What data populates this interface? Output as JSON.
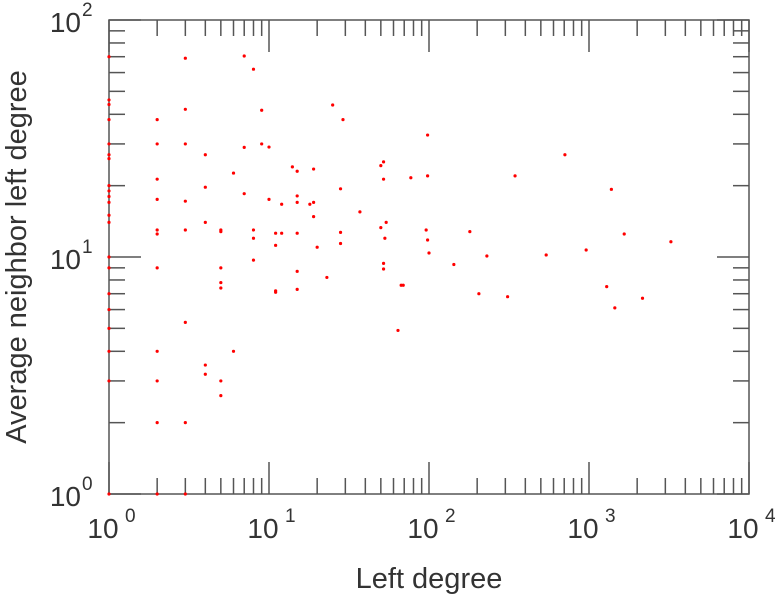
{
  "chart_data": {
    "type": "scatter",
    "title": "",
    "xlabel": "Left degree",
    "ylabel": "Average neighbor left degree",
    "xscale": "log",
    "yscale": "log",
    "xlim": [
      1,
      10000
    ],
    "ylim": [
      1,
      100
    ],
    "grid": false,
    "marker_color": "#ff0000",
    "x_ticks": [
      {
        "base": "10",
        "exp": "0",
        "value": 1
      },
      {
        "base": "10",
        "exp": "1",
        "value": 10
      },
      {
        "base": "10",
        "exp": "2",
        "value": 100
      },
      {
        "base": "10",
        "exp": "3",
        "value": 1000
      },
      {
        "base": "10",
        "exp": "4",
        "value": 10000
      }
    ],
    "y_ticks": [
      {
        "base": "10",
        "exp": "0",
        "value": 1
      },
      {
        "base": "10",
        "exp": "1",
        "value": 10
      },
      {
        "base": "10",
        "exp": "2",
        "value": 100
      }
    ],
    "points": [
      [
        1,
        70
      ],
      [
        1,
        46
      ],
      [
        1,
        44
      ],
      [
        1,
        38
      ],
      [
        1,
        30
      ],
      [
        1,
        27
      ],
      [
        1,
        26
      ],
      [
        1,
        20
      ],
      [
        1,
        19
      ],
      [
        1,
        18
      ],
      [
        1,
        17
      ],
      [
        1,
        15
      ],
      [
        1,
        14
      ],
      [
        1,
        10
      ],
      [
        1,
        9
      ],
      [
        1,
        7
      ],
      [
        1,
        6
      ],
      [
        1,
        5
      ],
      [
        1,
        4
      ],
      [
        1,
        3
      ],
      [
        1,
        1
      ],
      [
        2,
        38
      ],
      [
        2,
        30
      ],
      [
        2,
        21.3
      ],
      [
        2,
        17.5
      ],
      [
        2,
        13
      ],
      [
        2,
        12.5
      ],
      [
        2,
        9
      ],
      [
        2,
        4
      ],
      [
        2,
        3
      ],
      [
        2,
        2
      ],
      [
        2,
        1
      ],
      [
        3,
        69
      ],
      [
        3,
        42
      ],
      [
        3,
        30
      ],
      [
        3,
        17.2
      ],
      [
        3,
        13
      ],
      [
        3,
        5.3
      ],
      [
        3,
        2
      ],
      [
        3,
        1
      ],
      [
        4,
        27
      ],
      [
        4,
        19.7
      ],
      [
        4,
        14
      ],
      [
        4,
        3.5
      ],
      [
        4,
        3.2
      ],
      [
        5,
        13
      ],
      [
        5,
        12.8
      ],
      [
        5,
        9
      ],
      [
        5,
        7.8
      ],
      [
        5,
        7.4
      ],
      [
        5,
        3
      ],
      [
        5,
        2.6
      ],
      [
        6,
        22.6
      ],
      [
        6,
        4
      ],
      [
        7,
        70.5
      ],
      [
        7,
        29
      ],
      [
        7,
        18.5
      ],
      [
        8,
        62
      ],
      [
        8,
        13
      ],
      [
        8,
        12
      ],
      [
        8,
        9.7
      ],
      [
        9,
        41.6
      ],
      [
        9,
        30
      ],
      [
        10,
        29.1
      ],
      [
        10,
        17.5
      ],
      [
        11,
        12.6
      ],
      [
        11,
        11.2
      ],
      [
        11,
        7.2
      ],
      [
        11,
        7.1
      ],
      [
        12,
        16.7
      ],
      [
        12,
        12.6
      ],
      [
        14,
        24
      ],
      [
        15,
        23
      ],
      [
        15,
        18.1
      ],
      [
        15,
        17
      ],
      [
        15,
        12.6
      ],
      [
        15,
        8.7
      ],
      [
        15,
        7.3
      ],
      [
        18,
        16.7
      ],
      [
        19,
        17
      ],
      [
        19,
        23.5
      ],
      [
        19,
        14.8
      ],
      [
        20,
        11
      ],
      [
        23,
        8.2
      ],
      [
        25,
        43.8
      ],
      [
        28,
        19.4
      ],
      [
        28,
        12.7
      ],
      [
        28,
        11.4
      ],
      [
        29,
        38
      ],
      [
        37,
        15.5
      ],
      [
        50,
        24.3
      ],
      [
        52,
        25.2
      ],
      [
        52,
        21.3
      ],
      [
        50,
        13.3
      ],
      [
        54,
        14
      ],
      [
        53,
        12
      ],
      [
        52,
        9.4
      ],
      [
        52,
        8.9
      ],
      [
        64,
        4.9
      ],
      [
        67,
        7.6
      ],
      [
        69,
        7.6
      ],
      [
        77,
        21.6
      ],
      [
        98,
        32.7
      ],
      [
        98,
        22
      ],
      [
        96,
        13
      ],
      [
        98,
        11.8
      ],
      [
        100,
        10.4
      ],
      [
        143,
        9.3
      ],
      [
        180,
        12.8
      ],
      [
        205,
        7
      ],
      [
        230,
        10.1
      ],
      [
        310,
        6.8
      ],
      [
        345,
        22
      ],
      [
        540,
        10.2
      ],
      [
        707,
        27
      ],
      [
        960,
        10.7
      ],
      [
        1290,
        7.5
      ],
      [
        1380,
        19.3
      ],
      [
        1450,
        6.1
      ],
      [
        1660,
        12.5
      ],
      [
        2160,
        6.7
      ],
      [
        3250,
        11.6
      ]
    ]
  }
}
